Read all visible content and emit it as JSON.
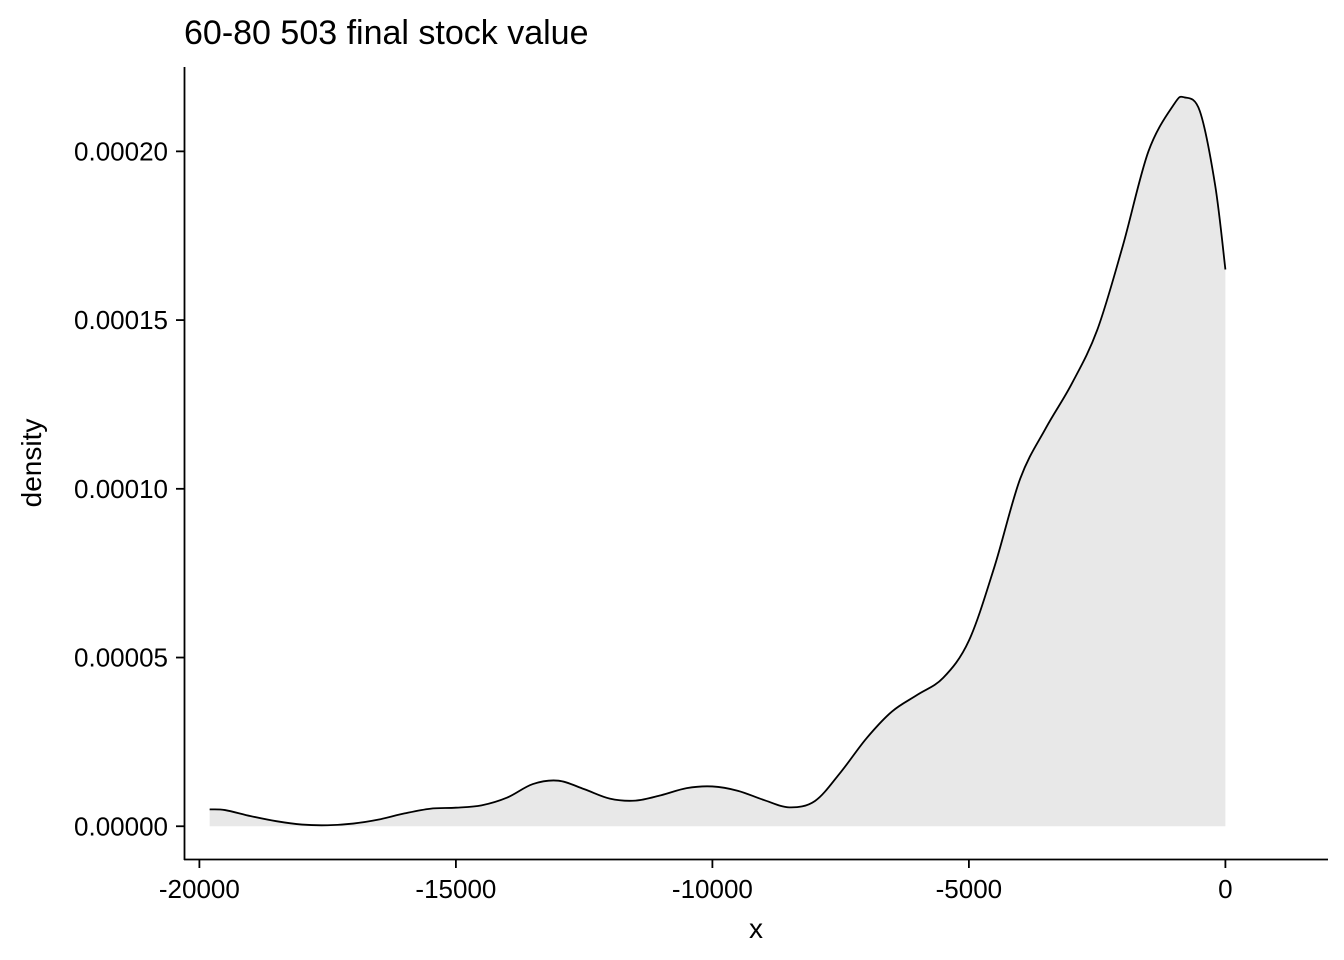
{
  "chart_data": {
    "type": "area",
    "title": "60-80 503 final stock value",
    "xlabel": "x",
    "ylabel": "density",
    "xlim": [
      -20300,
      2000
    ],
    "ylim": [
      -1e-05,
      0.000225
    ],
    "x_ticks": [
      -20000,
      -15000,
      -10000,
      -5000,
      0
    ],
    "x_tick_labels": [
      "-20000",
      "-15000",
      "-10000",
      "-5000",
      "0"
    ],
    "y_ticks": [
      0,
      5e-05,
      0.0001,
      0.00015,
      0.0002
    ],
    "y_tick_labels": [
      "0.00000",
      "0.00005",
      "0.00010",
      "0.00015",
      "0.00020"
    ],
    "grid": false,
    "legend": "none",
    "fill_color": "#e8e8e8",
    "line_color": "#000000",
    "series": [
      {
        "x": [
          -19800,
          -19500,
          -19000,
          -18500,
          -18000,
          -17500,
          -17000,
          -16500,
          -16000,
          -15500,
          -15000,
          -14500,
          -14000,
          -13500,
          -13000,
          -12500,
          -12000,
          -11500,
          -11000,
          -10500,
          -10000,
          -9500,
          -9000,
          -8500,
          -8000,
          -7500,
          -7000,
          -6500,
          -6000,
          -5500,
          -5000,
          -4500,
          -4000,
          -3500,
          -3000,
          -2500,
          -2000,
          -1500,
          -1000,
          -800,
          -500,
          -200,
          0
        ],
        "y": [
          5e-06,
          4.8e-06,
          3e-06,
          1.5e-06,
          5e-07,
          3e-07,
          8e-07,
          2e-06,
          3.8e-06,
          5.2e-06,
          5.5e-06,
          6.2e-06,
          8.5e-06,
          1.25e-05,
          1.35e-05,
          1.1e-05,
          8.2e-06,
          7.6e-06,
          9.2e-06,
          1.13e-05,
          1.18e-05,
          1.05e-05,
          7.8e-06,
          5.6e-06,
          7.5e-06,
          1.6e-05,
          2.6e-05,
          3.4e-05,
          3.9e-05,
          4.4e-05,
          5.5e-05,
          7.7e-05,
          0.000103,
          0.000118,
          0.000131,
          0.000147,
          0.000172,
          0.0002,
          0.000214,
          0.000216,
          0.000212,
          0.00019,
          0.000165
        ]
      }
    ]
  }
}
